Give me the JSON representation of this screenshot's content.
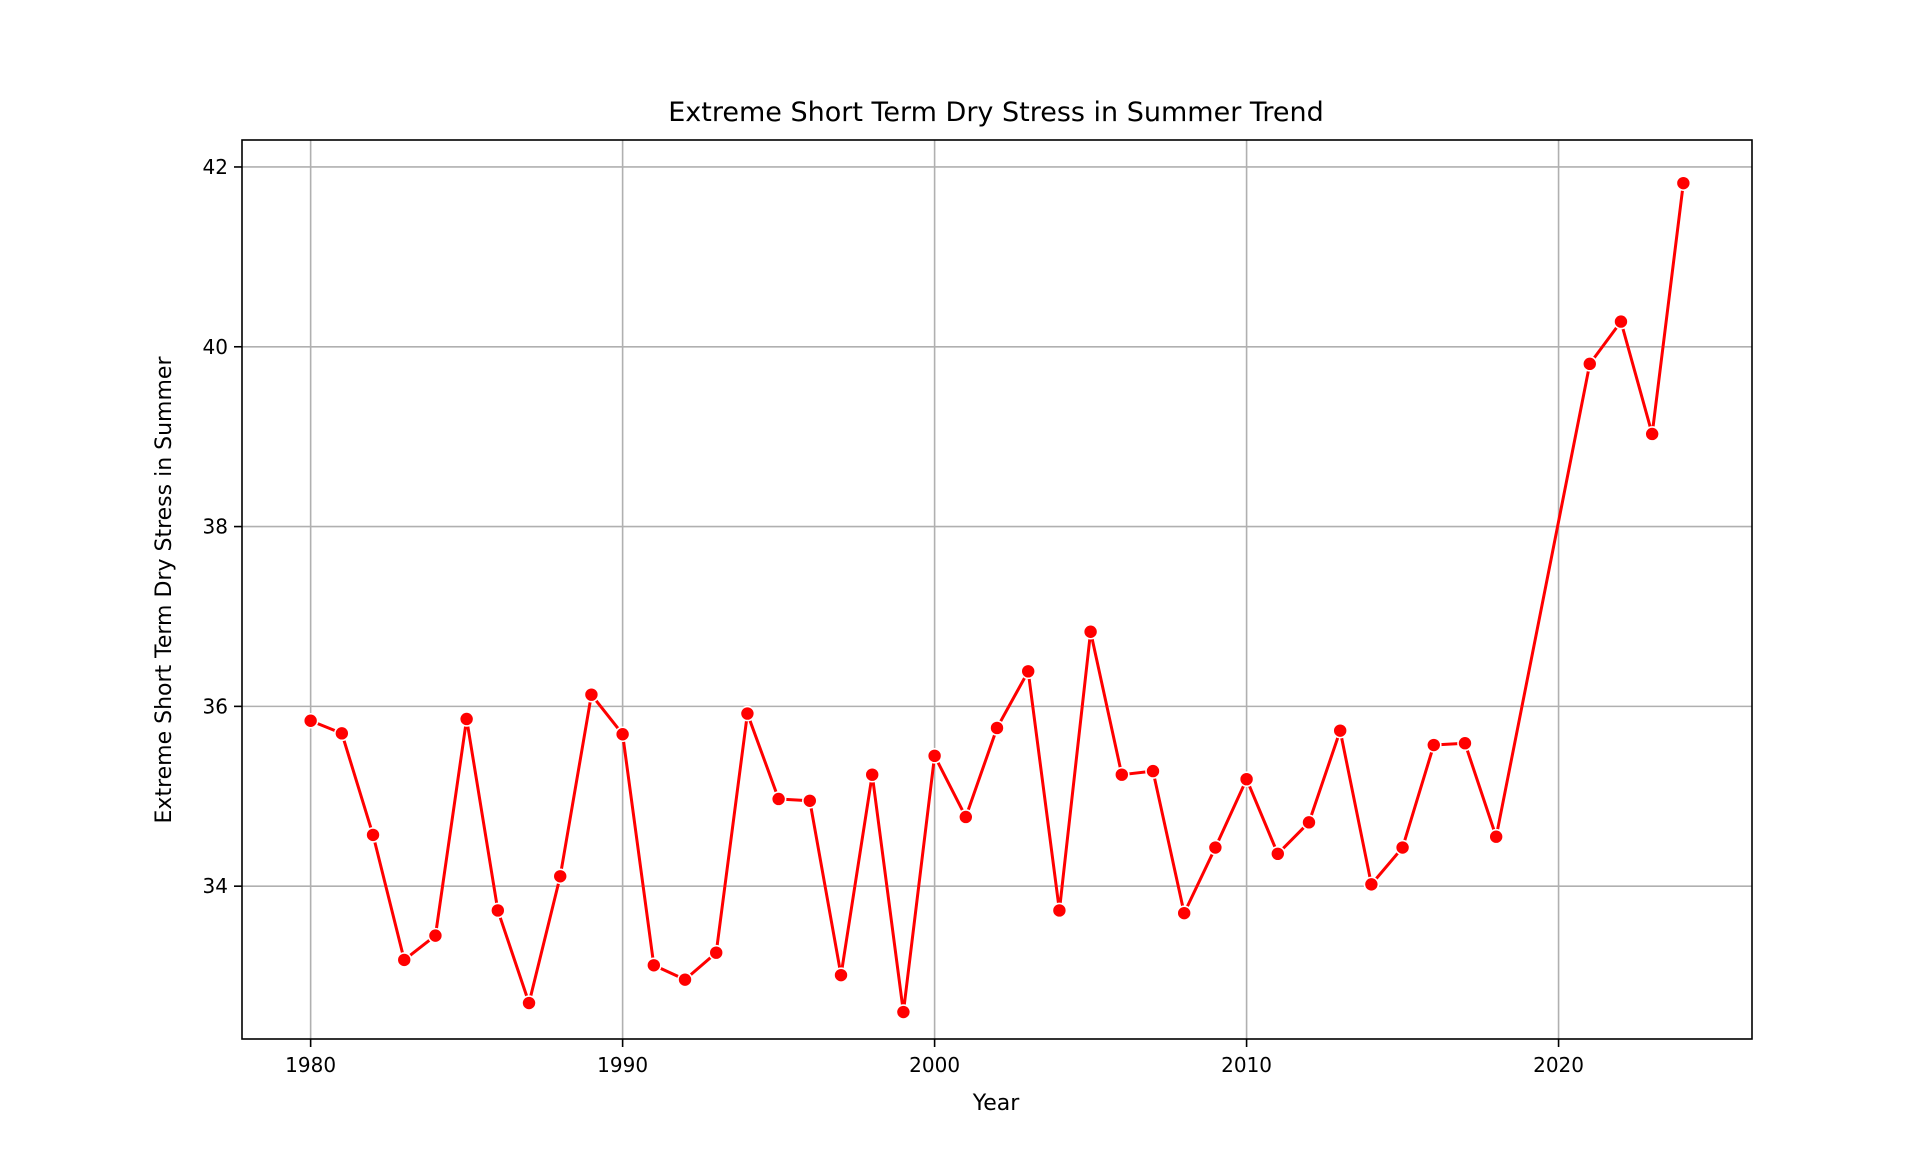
{
  "chart_data": {
    "type": "line",
    "title": "Extreme Short Term Dry Stress in Summer Trend",
    "xlabel": "Year",
    "ylabel": "Extreme Short Term Dry Stress in Summer",
    "xlim": [
      1977.8,
      2026.2
    ],
    "ylim": [
      32.3,
      42.3
    ],
    "xticks": [
      1980,
      1990,
      2000,
      2010,
      2020
    ],
    "yticks": [
      34,
      36,
      38,
      40,
      42
    ],
    "grid": true,
    "line_color": "#ff0000",
    "marker_color": "#ff0000",
    "x": [
      1980,
      1981,
      1982,
      1983,
      1984,
      1985,
      1986,
      1987,
      1988,
      1989,
      1990,
      1991,
      1992,
      1993,
      1994,
      1995,
      1996,
      1997,
      1998,
      1999,
      2000,
      2001,
      2002,
      2003,
      2004,
      2005,
      2006,
      2007,
      2008,
      2009,
      2010,
      2011,
      2012,
      2013,
      2014,
      2015,
      2016,
      2017,
      2018,
      2021,
      2022,
      2023,
      2024
    ],
    "series": [
      {
        "values": [
          35.84,
          35.7,
          34.57,
          33.18,
          33.45,
          35.86,
          33.73,
          32.7,
          34.11,
          36.13,
          35.69,
          33.12,
          32.96,
          33.26,
          35.92,
          34.97,
          34.95,
          33.01,
          35.24,
          32.6,
          35.45,
          34.77,
          35.76,
          36.39,
          33.73,
          36.83,
          35.24,
          35.28,
          33.7,
          34.43,
          35.19,
          34.36,
          34.71,
          35.73,
          34.02,
          34.43,
          35.57,
          35.59,
          34.55,
          39.81,
          40.28,
          39.03,
          41.82
        ]
      }
    ]
  }
}
